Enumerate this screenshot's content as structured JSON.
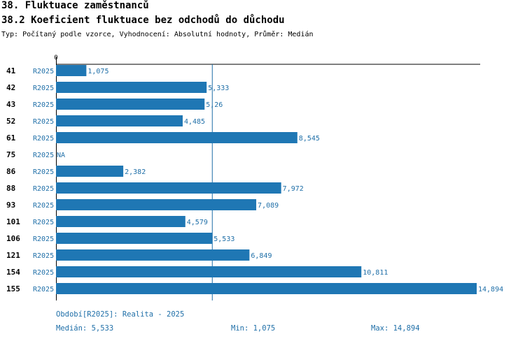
{
  "header": {
    "title": "38. Fluktuace zaměstnanců",
    "subtitle": "38.2 Koeficient fluktuace bez odchodů do důchodu",
    "info": "Typ: Počítaný podle vzorce, Vyhodnocení: Absolutní hodnoty, Průměr: Medián"
  },
  "chart_data": {
    "type": "bar",
    "orientation": "horizontal",
    "axis_zero_label": "0",
    "categories": [
      "41",
      "42",
      "43",
      "52",
      "61",
      "75",
      "86",
      "88",
      "93",
      "101",
      "106",
      "121",
      "154",
      "155"
    ],
    "period_labels": [
      "R2025",
      "R2025",
      "R2025",
      "R2025",
      "R2025",
      "R2025",
      "R2025",
      "R2025",
      "R2025",
      "R2025",
      "R2025",
      "R2025",
      "R2025",
      "R2025"
    ],
    "values": [
      1.075,
      5.333,
      5.26,
      4.485,
      8.545,
      null,
      2.382,
      7.972,
      7.089,
      4.579,
      5.533,
      6.849,
      10.811,
      14.894
    ],
    "value_labels": [
      "1,075",
      "5,333",
      "5,26",
      "4,485",
      "8,545",
      "NA",
      "2,382",
      "7,972",
      "7,089",
      "4,579",
      "5,533",
      "6,849",
      "10,811",
      "14,894"
    ],
    "median": 5.533,
    "xlim": [
      0,
      14.894
    ],
    "bar_color": "#1f77b4",
    "label_color": "#1f6fa8"
  },
  "footer": {
    "period": "Období[R2025]: Realita - 2025",
    "median": "Medián: 5,533",
    "min": "Min: 1,075",
    "max": "Max: 14,894"
  }
}
